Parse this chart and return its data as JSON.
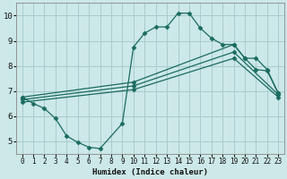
{
  "xlabel": "Humidex (Indice chaleur)",
  "bg_color": "#cce8e8",
  "grid_color": "#aacccc",
  "line_color": "#1a6b60",
  "xlim": [
    -0.5,
    23.5
  ],
  "ylim": [
    4.5,
    10.5
  ],
  "xticks": [
    0,
    1,
    2,
    3,
    4,
    5,
    6,
    7,
    8,
    9,
    10,
    11,
    12,
    13,
    14,
    15,
    16,
    17,
    18,
    19,
    20,
    21,
    22,
    23
  ],
  "yticks": [
    5,
    6,
    7,
    8,
    9,
    10
  ],
  "curve_wavy_x": [
    0,
    1,
    2,
    3,
    4,
    5,
    6,
    7,
    9,
    10,
    11,
    12,
    13,
    14,
    15,
    16,
    17,
    18,
    19,
    20,
    21,
    22,
    23
  ],
  "curve_wavy_y": [
    6.75,
    6.5,
    6.3,
    5.9,
    5.2,
    4.95,
    4.75,
    4.7,
    5.7,
    8.75,
    9.3,
    9.55,
    9.55,
    10.1,
    10.1,
    9.5,
    9.1,
    8.85,
    8.85,
    8.3,
    7.85,
    7.8,
    6.9
  ],
  "curve_line1_x": [
    0,
    10,
    19,
    20,
    21,
    22,
    23
  ],
  "curve_line1_y": [
    6.75,
    7.35,
    8.85,
    8.3,
    8.3,
    7.85,
    6.9
  ],
  "curve_line2_x": [
    0,
    10,
    19,
    23
  ],
  "curve_line2_y": [
    6.65,
    7.2,
    8.55,
    6.85
  ],
  "curve_line3_x": [
    0,
    10,
    19,
    23
  ],
  "curve_line3_y": [
    6.55,
    7.05,
    8.3,
    6.75
  ]
}
